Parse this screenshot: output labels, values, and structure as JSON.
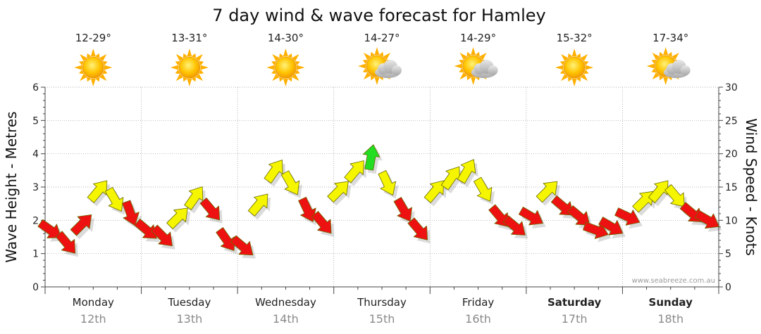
{
  "title": "7 day wind & wave forecast for Hamley",
  "credit": "www.seabreeze.com.au",
  "colors": {
    "red": "#ee1111",
    "yellow": "#f5f500",
    "green": "#22dd22",
    "grid": "#9a9a9a",
    "axis": "#444444",
    "sun": "#ffb000",
    "cloud": "#bdbdbd"
  },
  "days": [
    {
      "name": "Monday",
      "date": "12th",
      "temp": "12-29°",
      "icon": "sun-icon",
      "bold": false
    },
    {
      "name": "Tuesday",
      "date": "13th",
      "temp": "13-31°",
      "icon": "sun-icon",
      "bold": false
    },
    {
      "name": "Wednesday",
      "date": "14th",
      "temp": "14-30°",
      "icon": "sun-icon",
      "bold": false
    },
    {
      "name": "Thursday",
      "date": "15th",
      "temp": "14-27°",
      "icon": "partly-cloudy-icon",
      "bold": false
    },
    {
      "name": "Friday",
      "date": "16th",
      "temp": "14-29°",
      "icon": "partly-cloudy-icon",
      "bold": false
    },
    {
      "name": "Saturday",
      "date": "17th",
      "temp": "15-32°",
      "icon": "sun-icon",
      "bold": true
    },
    {
      "name": "Sunday",
      "date": "18th",
      "temp": "17-34°",
      "icon": "partly-cloudy-icon",
      "bold": true
    }
  ],
  "chart_data": {
    "type": "line",
    "title": "7 day wind & wave forecast for Hamley",
    "ylabel_left": "Wave Height - Metres",
    "ylabel_right": "Wind Speed - Knots",
    "ylim_left": [
      0,
      6
    ],
    "ylim_right": [
      0,
      30
    ],
    "yticks_left": [
      "0",
      "1",
      "2",
      "3",
      "4",
      "5",
      "6"
    ],
    "yticks_right": [
      "0",
      "5",
      "10",
      "15",
      "20",
      "25",
      "30"
    ],
    "grid": true,
    "days_count": 7,
    "series": [
      {
        "unit": "knots",
        "marker": "wind-direction-arrow",
        "x": [
          0.0,
          0.17,
          0.33,
          0.5,
          0.67,
          0.83,
          1.0,
          1.17,
          1.33,
          1.5,
          1.67,
          1.83,
          2.0,
          2.17,
          2.33,
          2.5,
          2.67,
          2.83,
          3.0,
          3.17,
          3.33,
          3.5,
          3.67,
          3.83,
          4.0,
          4.17,
          4.33,
          4.5,
          4.67,
          4.83,
          5.0,
          5.17,
          5.33,
          5.5,
          5.67,
          5.83,
          6.0,
          6.17,
          6.33,
          6.5,
          6.67,
          6.83
        ],
        "values": [
          8.5,
          6.5,
          9.5,
          14.5,
          13.0,
          11.0,
          8.5,
          7.5,
          10.5,
          13.5,
          11.5,
          7.0,
          6.0,
          12.5,
          17.5,
          15.5,
          11.5,
          9.5,
          14.5,
          17.5,
          19.5,
          15.5,
          11.5,
          8.5,
          14.5,
          16.5,
          17.5,
          14.5,
          10.5,
          9.0,
          10.5,
          14.5,
          12.0,
          10.5,
          8.5,
          9.0,
          10.5,
          13.0,
          14.5,
          13.5,
          11.0,
          10.0
        ],
        "direction_deg": [
          125,
          140,
          45,
          40,
          150,
          160,
          130,
          135,
          45,
          35,
          140,
          145,
          130,
          40,
          35,
          150,
          155,
          140,
          45,
          40,
          10,
          155,
          150,
          140,
          40,
          35,
          30,
          150,
          140,
          130,
          120,
          45,
          130,
          130,
          110,
          120,
          115,
          45,
          40,
          140,
          130,
          120
        ],
        "colors": [
          "red",
          "red",
          "red",
          "yellow",
          "yellow",
          "red",
          "red",
          "red",
          "yellow",
          "yellow",
          "red",
          "red",
          "red",
          "yellow",
          "yellow",
          "yellow",
          "red",
          "red",
          "yellow",
          "yellow",
          "green",
          "yellow",
          "red",
          "red",
          "yellow",
          "yellow",
          "yellow",
          "yellow",
          "red",
          "red",
          "red",
          "yellow",
          "red",
          "red",
          "red",
          "red",
          "red",
          "yellow",
          "yellow",
          "yellow",
          "red",
          "red"
        ]
      }
    ]
  }
}
